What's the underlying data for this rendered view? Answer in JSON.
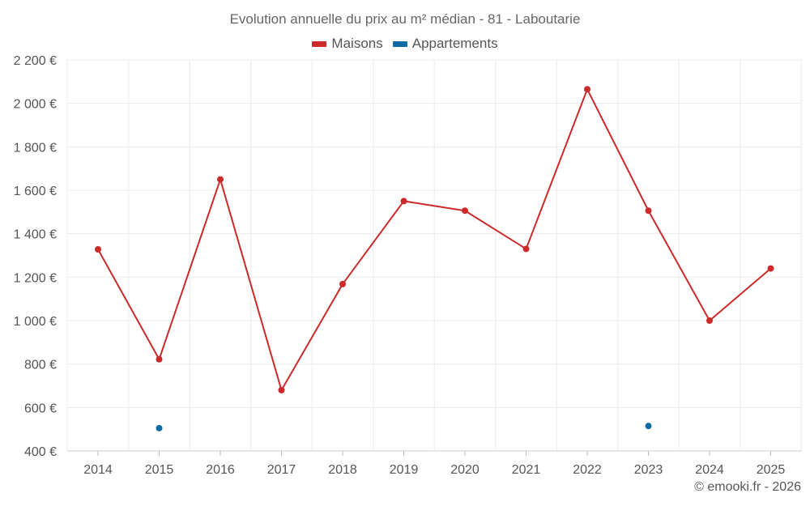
{
  "chart_data": {
    "type": "line",
    "title": "Evolution annuelle du prix au m² médian - 81 - Laboutarie",
    "categories": [
      "2014",
      "2015",
      "2016",
      "2017",
      "2018",
      "2019",
      "2020",
      "2021",
      "2022",
      "2023",
      "2024",
      "2025"
    ],
    "series": [
      {
        "name": "Maisons",
        "color": "#cc2a2a",
        "values": [
          1328,
          822,
          1650,
          680,
          1168,
          1550,
          1506,
          1330,
          2065,
          1506,
          1000,
          1240
        ]
      },
      {
        "name": "Appartements",
        "color": "#0e6aa4",
        "values": [
          null,
          505,
          null,
          null,
          null,
          null,
          null,
          null,
          null,
          515,
          null,
          null
        ]
      }
    ],
    "y_ticks": [
      "2 200 €",
      "2 000 €",
      "1 800 €",
      "1 600 €",
      "1 400 €",
      "1 200 €",
      "1 000 €",
      "800 €",
      "600 €",
      "400 €"
    ],
    "y_tick_values": [
      2200,
      2000,
      1800,
      1600,
      1400,
      1200,
      1000,
      800,
      600,
      400
    ],
    "ylim": [
      400,
      2200
    ],
    "xlabel": "",
    "ylabel": "",
    "legend_position": "top-center",
    "grid": true
  },
  "credit": "© emooki.fr - 2026"
}
